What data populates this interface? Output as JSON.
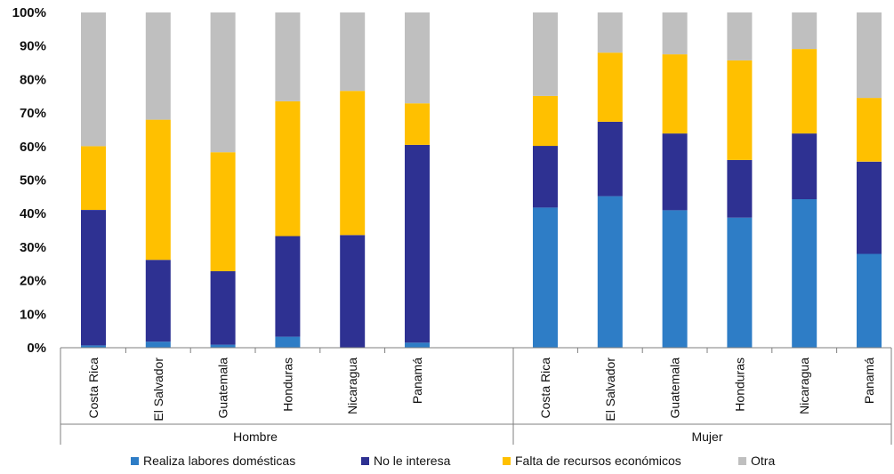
{
  "chart_data": {
    "type": "bar",
    "stacked": true,
    "stack_mode": "percent",
    "ylim": [
      0,
      100
    ],
    "y_ticks": [
      "0%",
      "10%",
      "20%",
      "30%",
      "40%",
      "50%",
      "60%",
      "70%",
      "80%",
      "90%",
      "100%"
    ],
    "grid": false,
    "legend_position": "bottom",
    "groups": [
      {
        "label": "Hombre",
        "categories": [
          "Costa Rica",
          "El Salvador",
          "Guatemala",
          "Honduras",
          "Nicaragua",
          "Panamá"
        ]
      },
      {
        "label": "Mujer",
        "categories": [
          "Costa Rica",
          "El Salvador",
          "Guatemala",
          "Honduras",
          "Nicaragua",
          "Panamá"
        ]
      }
    ],
    "series": [
      {
        "name": "Realiza labores domésticas",
        "color": "#2e7dc6",
        "values": [
          0.7,
          1.8,
          0.9,
          3.3,
          0,
          1.5,
          41.8,
          45.2,
          41.0,
          38.8,
          44.3,
          28.0
        ]
      },
      {
        "name": "No le interesa",
        "color": "#2e3192",
        "values": [
          40.4,
          24.4,
          21.9,
          30.0,
          33.6,
          59.0,
          18.4,
          22.2,
          22.9,
          17.2,
          19.6,
          27.5
        ]
      },
      {
        "name": "Falta de recursos económicos",
        "color": "#ffc000",
        "values": [
          19.0,
          41.8,
          35.5,
          40.2,
          43.0,
          12.4,
          14.9,
          20.6,
          23.6,
          29.7,
          25.2,
          19.0
        ]
      },
      {
        "name": "Otra",
        "color": "#bfbfbf",
        "values": [
          39.9,
          32.0,
          41.7,
          26.5,
          23.4,
          27.1,
          24.9,
          12.0,
          12.5,
          14.3,
          10.9,
          25.5
        ]
      }
    ]
  }
}
